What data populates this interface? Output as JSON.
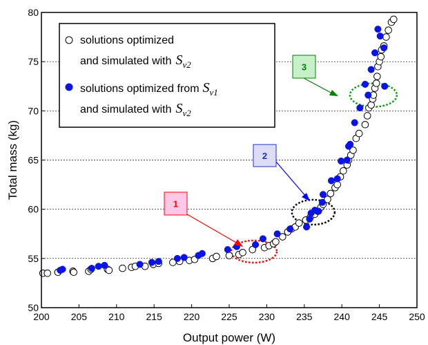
{
  "chart_data": {
    "type": "scatter",
    "title": "",
    "xlabel": "Output power (W)",
    "ylabel": "Total mass (kg)",
    "xlim": [
      200,
      250
    ],
    "ylim": [
      50,
      80
    ],
    "xticks": [
      "200",
      "205",
      "210",
      "215",
      "220",
      "225",
      "230",
      "235",
      "240",
      "245",
      "250"
    ],
    "yticks": [
      "50",
      "55",
      "60",
      "65",
      "70",
      "75",
      "80"
    ],
    "grid": "horizontal dashed",
    "legend_position": "top-left",
    "legend": [
      {
        "marker": "open-circle",
        "line1": "solutions optimized",
        "line2_prefix": "and simulated with",
        "symbol": "S",
        "subscript": "v2"
      },
      {
        "marker": "filled-circle",
        "line1_prefix": "solutions optimized from",
        "line1_symbol": "S",
        "line1_subscript": "v1",
        "line2_prefix": "and simulated with",
        "line2_symbol": "S",
        "line2_subscript": "v2"
      }
    ],
    "series": [
      {
        "marker": "open-circle",
        "color": "#000000",
        "points": [
          [
            200.2,
            53.5
          ],
          [
            200.8,
            53.5
          ],
          [
            202.2,
            53.6
          ],
          [
            204.2,
            53.7
          ],
          [
            204.3,
            53.6
          ],
          [
            206.3,
            53.7
          ],
          [
            206.6,
            53.9
          ],
          [
            208.8,
            53.9
          ],
          [
            209.0,
            53.8
          ],
          [
            210.8,
            54.0
          ],
          [
            212.0,
            54.1
          ],
          [
            212.5,
            54.2
          ],
          [
            213.8,
            54.2
          ],
          [
            214.9,
            54.4
          ],
          [
            215.6,
            54.5
          ],
          [
            217.5,
            54.6
          ],
          [
            218.4,
            54.7
          ],
          [
            219.7,
            54.8
          ],
          [
            220.4,
            54.9
          ],
          [
            222.8,
            55.0
          ],
          [
            223.3,
            55.2
          ],
          [
            225.0,
            55.3
          ],
          [
            226.3,
            55.4
          ],
          [
            226.8,
            55.6
          ],
          [
            228.1,
            55.9
          ],
          [
            229.7,
            56.1
          ],
          [
            230.3,
            56.3
          ],
          [
            230.9,
            56.5
          ],
          [
            231.2,
            56.7
          ],
          [
            232.1,
            57.2
          ],
          [
            232.8,
            57.7
          ],
          [
            233.3,
            58.0
          ],
          [
            233.8,
            58.2
          ],
          [
            234.3,
            58.6
          ],
          [
            235.2,
            58.9
          ],
          [
            235.8,
            59.2
          ],
          [
            236.4,
            59.5
          ],
          [
            236.8,
            59.8
          ],
          [
            237.2,
            60.2
          ],
          [
            237.5,
            60.5
          ],
          [
            238.1,
            61.0
          ],
          [
            238.5,
            61.6
          ],
          [
            239.1,
            62.2
          ],
          [
            239.4,
            62.5
          ],
          [
            239.8,
            63.3
          ],
          [
            240.2,
            63.9
          ],
          [
            240.7,
            64.5
          ],
          [
            240.9,
            65.0
          ],
          [
            241.2,
            65.5
          ],
          [
            241.5,
            66.0
          ],
          [
            241.9,
            67.2
          ],
          [
            242.3,
            67.7
          ],
          [
            243.1,
            68.6
          ],
          [
            243.4,
            69.5
          ],
          [
            243.6,
            70.3
          ],
          [
            243.9,
            70.6
          ],
          [
            244.1,
            71.2
          ],
          [
            244.2,
            71.6
          ],
          [
            244.4,
            72.3
          ],
          [
            244.6,
            72.8
          ],
          [
            244.7,
            73.5
          ],
          [
            244.8,
            74.5
          ],
          [
            245.0,
            75.0
          ],
          [
            245.2,
            75.5
          ],
          [
            245.3,
            76.2
          ],
          [
            245.6,
            76.6
          ],
          [
            245.9,
            77.5
          ],
          [
            246.2,
            78.2
          ],
          [
            246.6,
            79.0
          ],
          [
            246.9,
            79.3
          ]
        ]
      },
      {
        "marker": "filled-circle",
        "color": "#0a14e6",
        "points": [
          [
            202.5,
            53.8
          ],
          [
            202.8,
            53.9
          ],
          [
            206.7,
            54.0
          ],
          [
            207.6,
            54.2
          ],
          [
            208.4,
            54.3
          ],
          [
            213.1,
            54.4
          ],
          [
            214.7,
            54.6
          ],
          [
            215.6,
            54.7
          ],
          [
            218.1,
            55.0
          ],
          [
            219.0,
            55.1
          ],
          [
            220.9,
            55.3
          ],
          [
            221.4,
            55.5
          ],
          [
            224.8,
            55.9
          ],
          [
            226.0,
            56.2
          ],
          [
            228.5,
            56.4
          ],
          [
            229.5,
            57.0
          ],
          [
            231.4,
            57.5
          ],
          [
            233.1,
            58.0
          ],
          [
            235.3,
            58.2
          ],
          [
            235.7,
            59.0
          ],
          [
            235.9,
            59.6
          ],
          [
            236.4,
            59.9
          ],
          [
            236.9,
            59.8
          ],
          [
            237.4,
            60.7
          ],
          [
            237.5,
            61.5
          ],
          [
            238.6,
            62.9
          ],
          [
            239.4,
            63.1
          ],
          [
            239.9,
            64.9
          ],
          [
            240.7,
            65.0
          ],
          [
            240.9,
            66.4
          ],
          [
            241.1,
            66.6
          ],
          [
            241.7,
            68.8
          ],
          [
            242.4,
            70.3
          ],
          [
            243.1,
            72.7
          ],
          [
            243.5,
            71.6
          ],
          [
            243.9,
            74.2
          ],
          [
            244.4,
            75.9
          ],
          [
            244.8,
            78.3
          ],
          [
            245.1,
            77.6
          ],
          [
            245.6,
            76.4
          ],
          [
            245.7,
            72.5
          ]
        ]
      }
    ],
    "annotations": [
      {
        "label": "1",
        "text_color": "#ff0000",
        "box_fill": "#ffc8e6",
        "box_stroke": "#ff0000",
        "arrow_color": "#ff0000",
        "ellipse_color": "#ff0000",
        "ellipse_center": [
          228.3,
          55.7
        ]
      },
      {
        "label": "2",
        "text_color": "#2030c0",
        "box_fill": "#dcdcf5",
        "box_stroke": "#2030c0",
        "arrow_color": "#0000ff",
        "ellipse_color": "#000000",
        "ellipse_center": [
          236.2,
          59.7
        ]
      },
      {
        "label": "3",
        "text_color": "#008000",
        "box_fill": "#c8f0c8",
        "box_stroke": "#008000",
        "arrow_color": "#008000",
        "ellipse_color": "#00a000",
        "ellipse_center": [
          244.2,
          71.6
        ]
      }
    ]
  }
}
